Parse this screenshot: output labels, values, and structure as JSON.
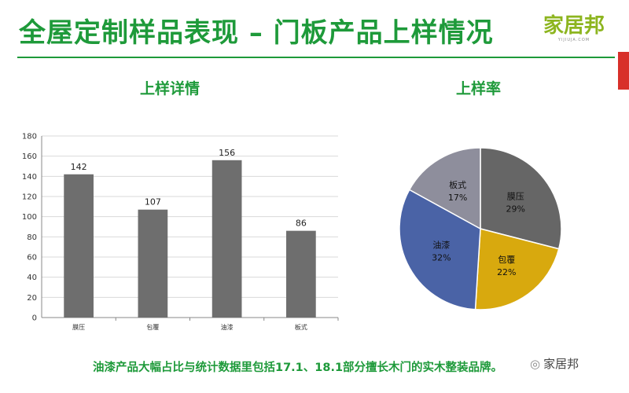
{
  "header": {
    "title": "全屋定制样品表现 – 门板产品上样情况",
    "logo_text": "家居邦",
    "logo_sub": "YIJIUJA.COM"
  },
  "colors": {
    "accent": "#1e9a3a",
    "logo": "#8db51f",
    "red_bar": "#d8302a",
    "bar": "#6e6e6e"
  },
  "chart_data": [
    {
      "type": "bar",
      "title": "上样详情",
      "categories": [
        "膜压",
        "包覆",
        "油漆",
        "板式"
      ],
      "values": [
        142,
        107,
        156,
        86
      ],
      "ylim": [
        0,
        180
      ],
      "yticks": [
        0,
        20,
        40,
        60,
        80,
        100,
        120,
        140,
        160,
        180
      ],
      "xlabel": "",
      "ylabel": "",
      "grid": true,
      "data_labels": true
    },
    {
      "type": "pie",
      "title": "上样率",
      "categories": [
        "膜压",
        "包覆",
        "油漆",
        "板式"
      ],
      "values": [
        29,
        22,
        32,
        17
      ],
      "labels": [
        "29%",
        "22%",
        "32%",
        "17%"
      ],
      "colors": [
        "#666666",
        "#d8a90e",
        "#4a63a6",
        "#8e8e9c"
      ]
    }
  ],
  "footer": {
    "text": "油漆产品大幅占比与统计数据里包括17.1、18.1部分擅长木门的实木整装品牌。"
  },
  "watermark": {
    "icon": "wechat-icon",
    "text": "家居邦"
  }
}
